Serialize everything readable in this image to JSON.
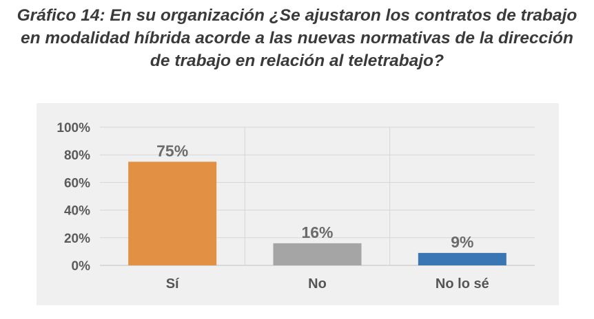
{
  "chart_data": {
    "type": "bar",
    "title_lines": [
      "Gráfico 14: En su organización ¿Se ajustaron los contratos de trabajo",
      "en modalidad híbrida acorde a las nuevas normativas de la dirección",
      "de trabajo en relación al teletrabajo?"
    ],
    "categories": [
      "Sí",
      "No",
      "No lo sé"
    ],
    "values": [
      75,
      16,
      9
    ],
    "data_labels": [
      "75%",
      "16%",
      "9%"
    ],
    "bar_colors": [
      "#e29144",
      "#a5a5a5",
      "#3b76b4"
    ],
    "y_ticks": [
      "0%",
      "20%",
      "40%",
      "60%",
      "80%",
      "100%"
    ],
    "ylim": [
      0,
      100
    ],
    "grid": true,
    "legend": "none"
  }
}
